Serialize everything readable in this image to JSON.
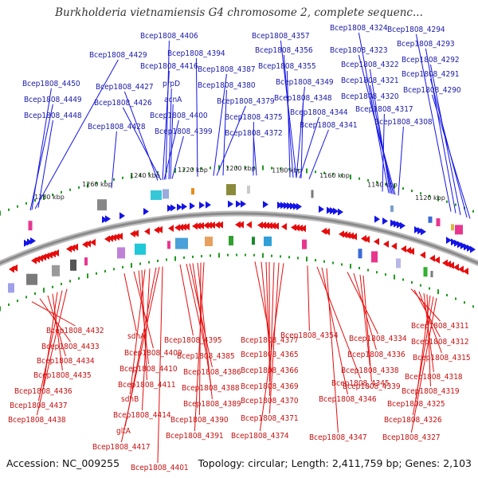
{
  "title": "Burkholderia vietnamiensis G4 chromosome 2, complete sequenc...",
  "accession": "Accession: NC_009255",
  "summary": "Topology: circular; Length: 2,411,759 bp; Genes: 2,103",
  "colors": {
    "forward": "#1414e6",
    "reverse": "#e60c0c",
    "backbone": "#8a8a8a",
    "ticks": "#1f9a1f"
  },
  "scale_labels": [
    "1280 kbp",
    "1260 kbp",
    "1240 kbp",
    "1220 kbp",
    "1200 kbp",
    "1180 kbp",
    "1160 kbp",
    "1140 kbp",
    "1120 kbp"
  ],
  "top_labels": [
    "Bcep1808_4406",
    "Bcep1808_4357",
    "Bcep1808_4324",
    "Bcep1808_4294",
    "Bcep1808_4429",
    "Bcep1808_4394",
    "Bcep1808_4356",
    "Bcep1808_4323",
    "Bcep1808_4293",
    "Bcep1808_4416",
    "Bcep1808_4387",
    "Bcep1808_4355",
    "Bcep1808_4322",
    "Bcep1808_4292",
    "Bcep1808_4450",
    "Bcep1808_4427",
    "prpD",
    "Bcep1808_4380",
    "Bcep1808_4349",
    "Bcep1808_4321",
    "Bcep1808_4291",
    "Bcep1808_4449",
    "Bcep1808_4426",
    "acnA",
    "Bcep1808_4379",
    "Bcep1808_4348",
    "Bcep1808_4320",
    "Bcep1808_4290",
    "Bcep1808_4448",
    "Bcep1808_4400",
    "Bcep1808_4375",
    "Bcep1808_4344",
    "Bcep1808_4317",
    "Bcep1808_4428",
    "Bcep1808_4399",
    "Bcep1808_4372",
    "Bcep1808_4341",
    "Bcep1808_4308"
  ],
  "bottom_labels": [
    "Bcep1808_4432",
    "Bcep1808_4433",
    "sdhA",
    "Bcep1808_4434",
    "Bcep1808_4435",
    "Bcep1808_4436",
    "Bcep1808_4437",
    "Bcep1808_4438",
    "Bcep1808_4409",
    "Bcep1808_4410",
    "Bcep1808_4411",
    "sdhB",
    "Bcep1808_4414",
    "gltA",
    "Bcep1808_4417",
    "Bcep1808_4401",
    "Bcep1808_4395",
    "Bcep1808_4385",
    "Bcep1808_4386",
    "Bcep1808_4388",
    "Bcep1808_4389",
    "Bcep1808_4390",
    "Bcep1808_4391",
    "Bcep1808_4377",
    "Bcep1808_4365",
    "Bcep1808_4366",
    "Bcep1808_4369",
    "Bcep1808_4370",
    "Bcep1808_4371",
    "Bcep1808_4374",
    "Bcep1808_4354",
    "Bcep1808_4345",
    "Bcep1808_4346",
    "Bcep1808_4347",
    "Bcep1808_4334",
    "Bcep1808_4336",
    "Bcep1808_4338",
    "Bcep1808_4339",
    "Bcep1808_4311",
    "Bcep1808_4312",
    "Bcep1808_4315",
    "Bcep1808_4318",
    "Bcep1808_4319",
    "Bcep1808_4325",
    "Bcep1808_4326",
    "Bcep1808_4327"
  ]
}
